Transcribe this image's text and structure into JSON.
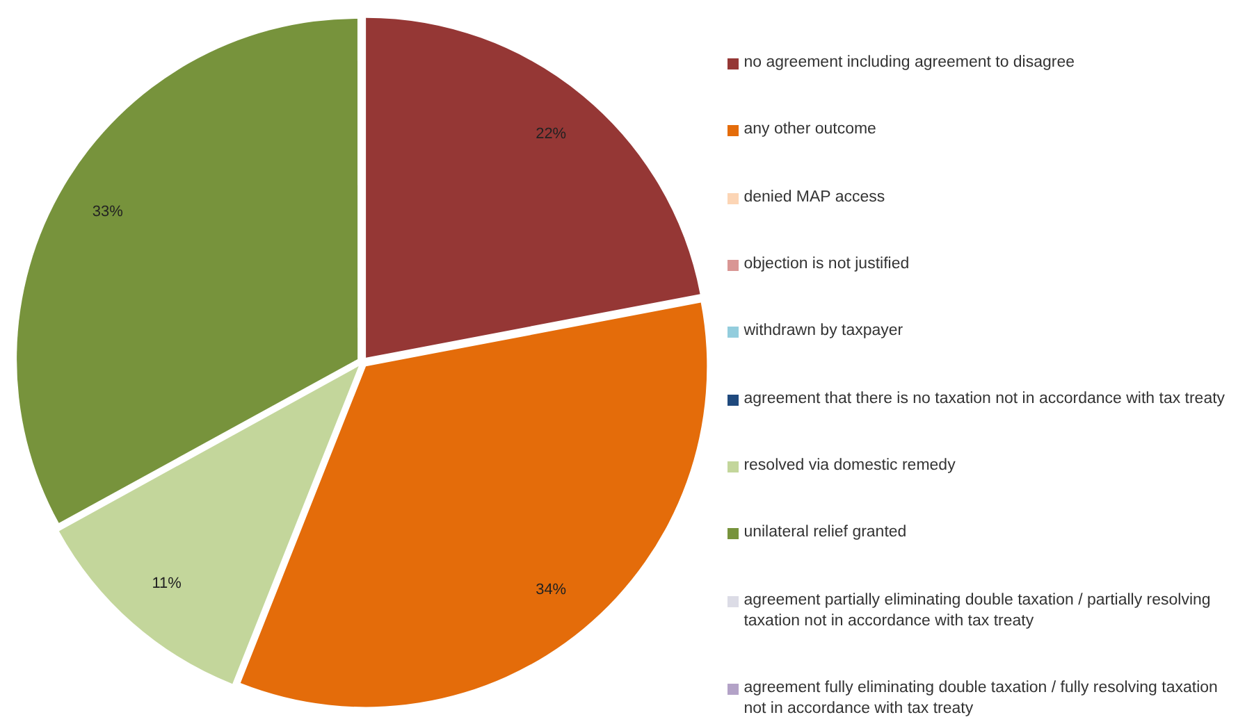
{
  "chart_data": {
    "type": "pie",
    "legend": "right",
    "categories": [
      "no agreement including agreement to disagree",
      "any other outcome",
      "denied MAP access",
      "objection is not justified",
      "withdrawn by taxpayer",
      "agreement that there is no taxation not in accordance with tax treaty",
      "resolved via domestic remedy",
      "unilateral relief granted",
      "agreement partially eliminating double taxation / partially resolving taxation not in accordance with tax treaty",
      "agreement fully eliminating double taxation / fully resolving taxation not in accordance with tax treaty"
    ],
    "values": [
      22,
      34,
      0,
      0,
      0,
      0,
      11,
      33,
      0,
      0
    ],
    "value_labels": [
      "22%",
      "34%",
      null,
      null,
      null,
      null,
      "11%",
      "33%",
      null,
      null
    ],
    "colors": [
      "#953735",
      "#e46c0a",
      "#fcd5b5",
      "#d99694",
      "#93cddd",
      "#1f497d",
      "#c3d69b",
      "#77933c",
      "#dcdce6",
      "#b3a2c7"
    ]
  }
}
